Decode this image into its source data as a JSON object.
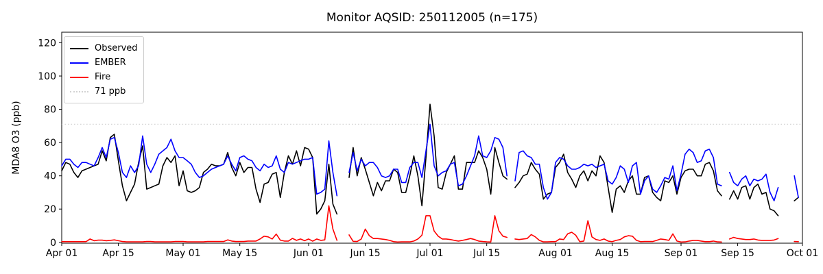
{
  "chart_data": {
    "type": "line",
    "title": "Monitor AQSID: 250112005 (n=175)",
    "ylabel": "MDA8 O3 (ppb)",
    "xlabel": "",
    "ylim": [
      0,
      126
    ],
    "yticks": [
      0,
      20,
      40,
      60,
      80,
      100,
      120
    ],
    "x_range_days": 183,
    "x_start": "Apr 01",
    "x_end": "Oct 01",
    "x_tick_labels": [
      "Apr 01",
      "Apr 15",
      "May 01",
      "May 15",
      "Jun 01",
      "Jun 15",
      "Jul 01",
      "Jul 15",
      "Aug 01",
      "Aug 15",
      "Sep 01",
      "Sep 15",
      "Oct 01"
    ],
    "x_tick_day_index": [
      0,
      14,
      30,
      44,
      61,
      75,
      91,
      105,
      122,
      136,
      153,
      167,
      183
    ],
    "grid": false,
    "legend_position": "upper left",
    "threshold": {
      "value": 71,
      "label": "71 ppb",
      "color": "#d3d3d3",
      "style": "dotted"
    },
    "series": [
      {
        "name": "Observed",
        "color": "#000000",
        "values": [
          43,
          48,
          47,
          42,
          39,
          43,
          44,
          45,
          46,
          47,
          55,
          49,
          63,
          65,
          49,
          34,
          25,
          30,
          35,
          48,
          58,
          32,
          33,
          34,
          35,
          46,
          51,
          48,
          52,
          34,
          43,
          31,
          30,
          31,
          33,
          42,
          44,
          47,
          46,
          46,
          47,
          54,
          45,
          40,
          48,
          42,
          45,
          45,
          32,
          24,
          35,
          36,
          41,
          42,
          27,
          42,
          52,
          47,
          55,
          46,
          57,
          56,
          51,
          17,
          20,
          25,
          47,
          23,
          17,
          null,
          null,
          39,
          57,
          40,
          51,
          44,
          36,
          28,
          36,
          31,
          37,
          37,
          44,
          42,
          30,
          30,
          40,
          52,
          40,
          22,
          51,
          83,
          64,
          33,
          32,
          42,
          47,
          52,
          32,
          32,
          48,
          48,
          48,
          55,
          51,
          44,
          29,
          57,
          48,
          40,
          38,
          null,
          33,
          36,
          40,
          41,
          48,
          44,
          41,
          26,
          29,
          30,
          45,
          48,
          53,
          42,
          38,
          33,
          40,
          43,
          37,
          43,
          40,
          52,
          48,
          33,
          18,
          32,
          34,
          30,
          37,
          40,
          29,
          29,
          39,
          40,
          30,
          27,
          25,
          37,
          36,
          40,
          29,
          39,
          43,
          44,
          44,
          40,
          40,
          47,
          48,
          43,
          31,
          28,
          null,
          26,
          31,
          26,
          33,
          34,
          26,
          33,
          35,
          29,
          30,
          20,
          19,
          16,
          null,
          null,
          null,
          25,
          27
        ]
      },
      {
        "name": "EMBER",
        "color": "#0000ff",
        "values": [
          46,
          50,
          50,
          47,
          45,
          48,
          48,
          47,
          46,
          51,
          57,
          51,
          62,
          63,
          54,
          42,
          39,
          46,
          42,
          46,
          64,
          47,
          42,
          47,
          53,
          55,
          57,
          62,
          55,
          51,
          51,
          49,
          47,
          42,
          39,
          40,
          42,
          44,
          45,
          46,
          47,
          52,
          47,
          43,
          51,
          52,
          50,
          49,
          45,
          43,
          47,
          45,
          46,
          52,
          44,
          42,
          48,
          47,
          48,
          49,
          50,
          50,
          51,
          29,
          30,
          32,
          61,
          42,
          28,
          null,
          null,
          42,
          54,
          43,
          50,
          46,
          48,
          48,
          45,
          40,
          39,
          40,
          44,
          44,
          36,
          36,
          45,
          48,
          48,
          39,
          55,
          71,
          46,
          40,
          42,
          43,
          47,
          48,
          34,
          35,
          40,
          46,
          52,
          64,
          52,
          51,
          55,
          63,
          62,
          57,
          40,
          null,
          37,
          54,
          55,
          52,
          51,
          47,
          47,
          33,
          26,
          30,
          48,
          51,
          50,
          46,
          44,
          44,
          45,
          47,
          46,
          47,
          45,
          46,
          47,
          37,
          35,
          39,
          46,
          44,
          36,
          46,
          48,
          29,
          37,
          40,
          32,
          30,
          34,
          39,
          38,
          46,
          31,
          41,
          53,
          56,
          54,
          48,
          49,
          55,
          56,
          51,
          35,
          34,
          null,
          42,
          36,
          34,
          38,
          40,
          34,
          38,
          37,
          38,
          41,
          30,
          25,
          33,
          null,
          null,
          null,
          40,
          27
        ]
      },
      {
        "name": "Fire",
        "color": "#ff0000",
        "values": [
          0.4,
          0.4,
          0.4,
          0.4,
          0.4,
          0.4,
          0.4,
          2,
          1,
          1.3,
          1.3,
          1,
          1.2,
          1.5,
          1,
          0.5,
          0.3,
          0.3,
          0.3,
          0.3,
          0.3,
          0.5,
          0.5,
          0.3,
          0.3,
          0.3,
          0.3,
          0.3,
          0.5,
          0.5,
          0.5,
          0.3,
          0.3,
          0.3,
          0.3,
          0.3,
          0.5,
          0.5,
          0.5,
          0.5,
          0.5,
          1.5,
          0.8,
          0.5,
          0.5,
          0.5,
          0.8,
          0.8,
          0.8,
          2,
          3.7,
          3.3,
          2,
          5,
          1.3,
          0.8,
          0.8,
          2.4,
          1.2,
          2,
          1,
          2,
          0.7,
          2,
          1.2,
          1.5,
          22,
          8,
          1.2,
          null,
          null,
          4.5,
          0.6,
          0.5,
          2,
          8,
          4,
          2.3,
          2.3,
          2,
          1.7,
          1.2,
          0.4,
          0.2,
          0.3,
          0.3,
          0.3,
          0.8,
          2,
          4.3,
          16,
          16,
          6.8,
          3.7,
          2,
          2,
          1.7,
          1.2,
          0.8,
          1.2,
          1.7,
          2.3,
          1.7,
          0.8,
          0.5,
          0.3,
          0.2,
          16,
          7,
          3.7,
          3,
          null,
          2,
          1.7,
          2,
          2.3,
          4.7,
          3.3,
          1.2,
          0.3,
          0.3,
          0.4,
          0.4,
          2,
          1.7,
          5.1,
          6.1,
          4.3,
          0.4,
          0.8,
          13,
          3.3,
          1.7,
          1.2,
          2,
          0.8,
          0.4,
          1.2,
          1.7,
          3.3,
          4,
          3.7,
          1.2,
          0.4,
          0.5,
          0.5,
          0.5,
          1.2,
          2,
          1.7,
          1.2,
          5.1,
          0.8,
          0.2,
          0.3,
          0.8,
          1.2,
          1.2,
          0.8,
          0.4,
          0.4,
          0.8,
          0.3,
          0.2,
          null,
          2,
          3,
          2.3,
          2,
          1.7,
          1.7,
          2,
          1.4,
          1.2,
          1.2,
          1.2,
          1.4,
          2.3,
          null,
          null,
          null,
          0.5,
          0.4
        ]
      }
    ]
  }
}
